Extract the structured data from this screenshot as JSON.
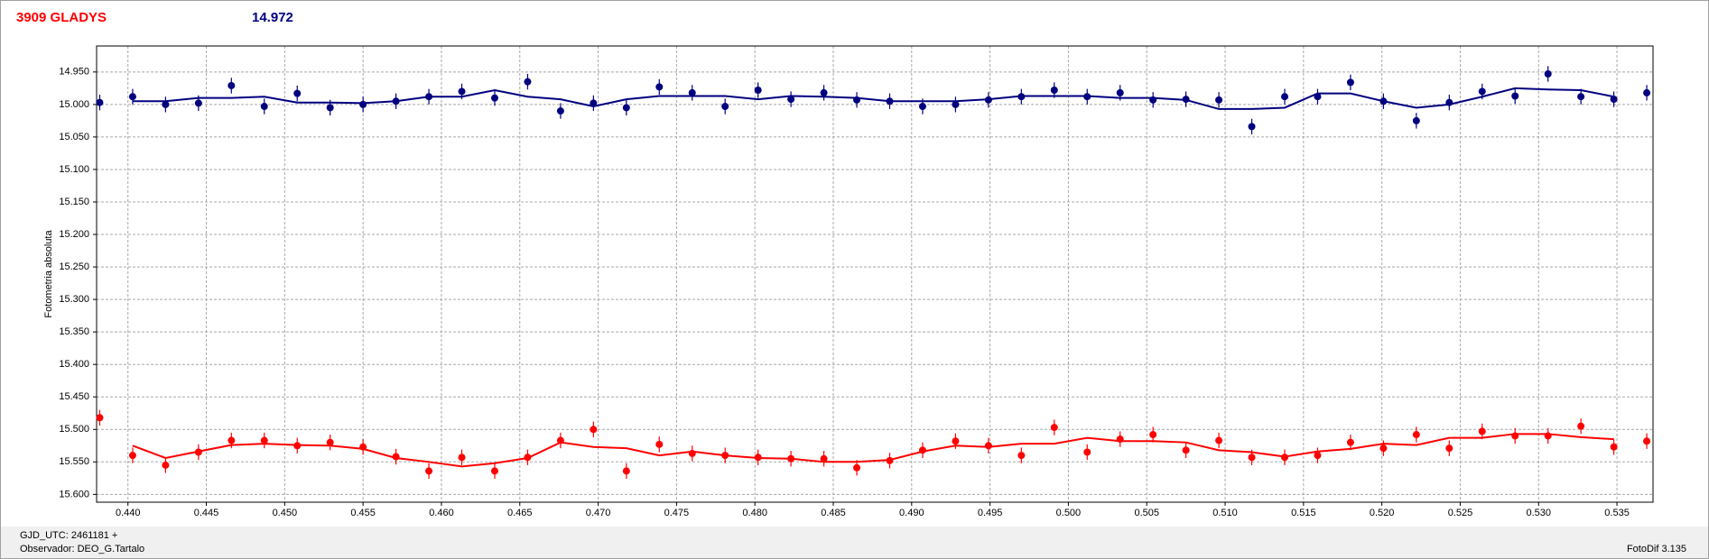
{
  "chart_data": {
    "type": "scatter",
    "title": "3909 GLADYS",
    "subtitle": "14.972",
    "y_label": "Fotometria absoluta",
    "invert_y": true,
    "grid": true,
    "xlim": [
      0.438,
      0.5373
    ],
    "ylim": [
      14.91,
      15.612
    ],
    "xticks": [
      {
        "value": 0.44,
        "label": "0.440"
      },
      {
        "value": 0.445,
        "label": "0.445"
      },
      {
        "value": 0.45,
        "label": "0.450"
      },
      {
        "value": 0.455,
        "label": "0.455"
      },
      {
        "value": 0.46,
        "label": "0.460"
      },
      {
        "value": 0.465,
        "label": "0.465"
      },
      {
        "value": 0.47,
        "label": "0.470"
      },
      {
        "value": 0.475,
        "label": "0.475"
      },
      {
        "value": 0.48,
        "label": "0.480"
      },
      {
        "value": 0.485,
        "label": "0.485"
      },
      {
        "value": 0.49,
        "label": "0.490"
      },
      {
        "value": 0.495,
        "label": "0.495"
      },
      {
        "value": 0.5,
        "label": "0.500"
      },
      {
        "value": 0.505,
        "label": "0.505"
      },
      {
        "value": 0.51,
        "label": "0.510"
      },
      {
        "value": 0.515,
        "label": "0.515"
      },
      {
        "value": 0.52,
        "label": "0.520"
      },
      {
        "value": 0.525,
        "label": "0.525"
      },
      {
        "value": 0.53,
        "label": "0.530"
      },
      {
        "value": 0.535,
        "label": "0.535"
      }
    ],
    "yticks": [
      {
        "value": 14.95,
        "label": "14.950"
      },
      {
        "value": 15.0,
        "label": "15.000"
      },
      {
        "value": 15.05,
        "label": "15.050"
      },
      {
        "value": 15.1,
        "label": "15.100"
      },
      {
        "value": 15.15,
        "label": "15.150"
      },
      {
        "value": 15.2,
        "label": "15.200"
      },
      {
        "value": 15.25,
        "label": "15.250"
      },
      {
        "value": 15.3,
        "label": "15.300"
      },
      {
        "value": 15.35,
        "label": "15.350"
      },
      {
        "value": 15.4,
        "label": "15.400"
      },
      {
        "value": 15.45,
        "label": "15.450"
      },
      {
        "value": 15.5,
        "label": "15.500"
      },
      {
        "value": 15.55,
        "label": "15.550"
      },
      {
        "value": 15.6,
        "label": "15.600"
      }
    ],
    "x": [
      0.4382,
      0.4403,
      0.4424,
      0.4445,
      0.4466,
      0.4487,
      0.4508,
      0.4529,
      0.455,
      0.4571,
      0.4592,
      0.4613,
      0.4634,
      0.4655,
      0.4676,
      0.4697,
      0.4718,
      0.4739,
      0.476,
      0.4781,
      0.4802,
      0.4823,
      0.4844,
      0.4865,
      0.4886,
      0.4907,
      0.4928,
      0.4949,
      0.497,
      0.4991,
      0.5012,
      0.5033,
      0.5054,
      0.5075,
      0.5096,
      0.5117,
      0.5138,
      0.5159,
      0.518,
      0.5201,
      0.5222,
      0.5243,
      0.5264,
      0.5285,
      0.5306,
      0.5327,
      0.5348,
      0.5369
    ],
    "series": [
      {
        "color": "#00007f",
        "values": [
          14.997,
          14.988,
          15.0,
          14.998,
          14.971,
          15.003,
          14.983,
          15.005,
          15.0,
          14.995,
          14.988,
          14.98,
          14.99,
          14.965,
          15.01,
          14.998,
          15.005,
          14.973,
          14.982,
          15.003,
          14.978,
          14.992,
          14.982,
          14.993,
          14.995,
          15.003,
          15.0,
          14.993,
          14.988,
          14.978,
          14.988,
          14.982,
          14.993,
          14.992,
          14.993,
          15.034,
          14.988,
          14.988,
          14.966,
          14.995,
          15.025,
          14.997,
          14.98,
          14.987,
          14.953,
          14.988,
          14.992,
          14.982
        ],
        "errors": [
          0.012,
          0.012,
          0.012,
          0.012,
          0.012,
          0.012,
          0.012,
          0.012,
          0.012,
          0.012,
          0.012,
          0.012,
          0.012,
          0.012,
          0.012,
          0.012,
          0.012,
          0.012,
          0.012,
          0.012,
          0.012,
          0.012,
          0.012,
          0.012,
          0.012,
          0.012,
          0.012,
          0.012,
          0.012,
          0.012,
          0.012,
          0.012,
          0.012,
          0.012,
          0.012,
          0.012,
          0.012,
          0.012,
          0.012,
          0.012,
          0.012,
          0.012,
          0.012,
          0.012,
          0.012,
          0.012,
          0.012,
          0.012
        ],
        "fit": [
          null,
          14.995,
          14.995,
          14.99,
          14.99,
          14.988,
          14.997,
          14.997,
          14.998,
          14.995,
          14.988,
          14.988,
          14.978,
          14.988,
          14.992,
          15.003,
          14.992,
          14.987,
          14.987,
          14.987,
          14.992,
          14.987,
          14.988,
          14.99,
          14.995,
          14.995,
          14.995,
          14.992,
          14.987,
          14.987,
          14.987,
          14.99,
          14.99,
          14.993,
          15.007,
          15.007,
          15.005,
          14.983,
          14.983,
          14.995,
          15.005,
          15.0,
          14.988,
          14.975,
          14.977,
          14.978,
          14.988,
          null
        ]
      },
      {
        "color": "#ff0000",
        "values": [
          15.482,
          15.54,
          15.555,
          15.535,
          15.517,
          15.517,
          15.525,
          15.52,
          15.527,
          15.542,
          15.564,
          15.543,
          15.564,
          15.543,
          15.517,
          15.5,
          15.564,
          15.523,
          15.537,
          15.54,
          15.543,
          15.545,
          15.545,
          15.559,
          15.548,
          15.532,
          15.518,
          15.525,
          15.54,
          15.497,
          15.535,
          15.515,
          15.508,
          15.532,
          15.517,
          15.543,
          15.543,
          15.54,
          15.52,
          15.529,
          15.508,
          15.529,
          15.503,
          15.51,
          15.51,
          15.495,
          15.527,
          15.518
        ],
        "errors": [
          0.012,
          0.012,
          0.012,
          0.012,
          0.012,
          0.012,
          0.012,
          0.012,
          0.012,
          0.012,
          0.012,
          0.012,
          0.012,
          0.012,
          0.012,
          0.012,
          0.012,
          0.012,
          0.012,
          0.012,
          0.012,
          0.012,
          0.012,
          0.012,
          0.012,
          0.012,
          0.012,
          0.012,
          0.012,
          0.012,
          0.012,
          0.012,
          0.012,
          0.012,
          0.012,
          0.012,
          0.012,
          0.012,
          0.012,
          0.012,
          0.012,
          0.012,
          0.012,
          0.012,
          0.012,
          0.012,
          0.012,
          0.012
        ],
        "fit": [
          null,
          15.525,
          15.544,
          15.534,
          15.524,
          15.522,
          15.524,
          15.525,
          15.53,
          15.544,
          15.55,
          15.557,
          15.552,
          15.544,
          15.52,
          15.527,
          15.529,
          15.54,
          15.534,
          15.54,
          15.544,
          15.545,
          15.55,
          15.55,
          15.547,
          15.534,
          15.525,
          15.527,
          15.522,
          15.522,
          15.513,
          15.518,
          15.518,
          15.52,
          15.532,
          15.535,
          15.542,
          15.534,
          15.53,
          15.522,
          15.524,
          15.513,
          15.513,
          15.507,
          15.507,
          15.512,
          15.515,
          null
        ]
      }
    ]
  },
  "footer": {
    "gjd": "GJD_UTC: 2461181 +",
    "observer": "Observador: DEO_G.Tartalo",
    "version": "FotoDif 3.135"
  }
}
